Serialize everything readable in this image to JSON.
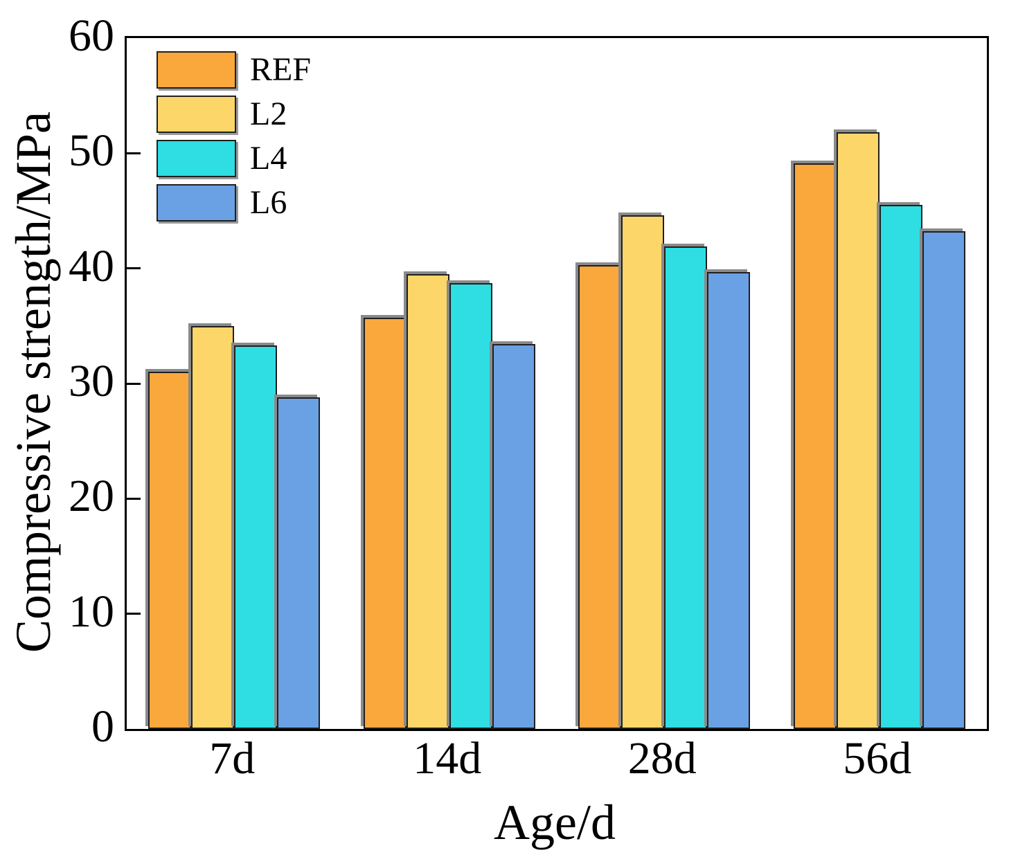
{
  "chart_data": {
    "type": "bar",
    "title": "",
    "xlabel": "Age/d",
    "ylabel": "Compressive strength/MPa",
    "categories": [
      "7d",
      "14d",
      "28d",
      "56d"
    ],
    "series": [
      {
        "name": "REF",
        "color": "#FAA83C",
        "values": [
          31.0,
          35.7,
          40.3,
          49.1
        ]
      },
      {
        "name": "L2",
        "color": "#FDD669",
        "values": [
          35.0,
          39.5,
          44.6,
          51.8
        ]
      },
      {
        "name": "L4",
        "color": "#2EDEE3",
        "values": [
          33.3,
          38.7,
          41.9,
          45.5
        ]
      },
      {
        "name": "L6",
        "color": "#69A1E4",
        "values": [
          28.8,
          33.4,
          39.7,
          43.2
        ]
      }
    ],
    "ylim": [
      0,
      60
    ],
    "yticks": [
      0,
      10,
      20,
      30,
      40,
      50,
      60
    ],
    "grid": false,
    "legend_position": "top-left",
    "colors": {
      "axis": "#000000",
      "text": "#000000",
      "bar_outline": "#1f1f1f",
      "shadow": "#8a8a8a",
      "background": "#ffffff"
    }
  }
}
